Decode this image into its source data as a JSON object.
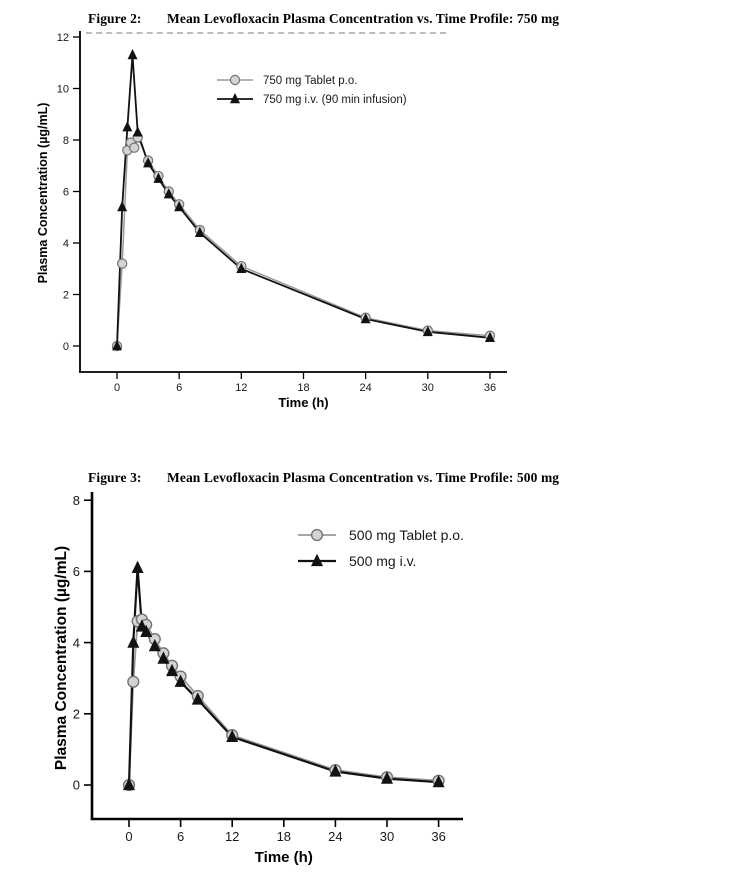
{
  "page": {
    "background": "#ffffff",
    "axis_color": "#000000",
    "tablet_line_color": "#9a9a9a",
    "tablet_marker_fill": "#d3d3d3",
    "tablet_marker_stroke": "#737373",
    "iv_color": "#121212"
  },
  "chart_data": [
    {
      "figure_label": "Figure 2:",
      "title": "Mean Levofloxacin Plasma Concentration vs. Time Profile: 750 mg",
      "type": "line",
      "xlabel": "Time (h)",
      "ylabel": "Plasma Concentration (µg/mL)",
      "xlim": [
        0,
        36
      ],
      "ylim": [
        0,
        12
      ],
      "xticks": [
        0,
        6,
        12,
        18,
        24,
        30,
        36
      ],
      "yticks": [
        0,
        2,
        4,
        6,
        8,
        10,
        12
      ],
      "grid": false,
      "legend_position": "upper-center-inside",
      "series": [
        {
          "name": "750 mg Tablet p.o.",
          "marker": "circle",
          "line_color": "#9a9a9a",
          "marker_fill": "#d3d3d3",
          "marker_stroke": "#737373",
          "x": [
            0,
            0.5,
            1,
            1.33,
            1.67,
            2,
            3,
            4,
            5,
            6,
            8,
            12,
            24,
            30,
            36
          ],
          "y": [
            0,
            3.2,
            7.6,
            7.9,
            7.7,
            8.1,
            7.2,
            6.6,
            6.0,
            5.5,
            4.5,
            3.1,
            1.1,
            0.6,
            0.4
          ]
        },
        {
          "name": "750 mg i.v. (90 min infusion)",
          "marker": "triangle",
          "line_color": "#121212",
          "marker_fill": "#121212",
          "marker_stroke": "#121212",
          "x": [
            0,
            0.5,
            1,
            1.5,
            2,
            3,
            4,
            5,
            6,
            8,
            12,
            24,
            30,
            36
          ],
          "y": [
            0,
            5.4,
            8.5,
            11.3,
            8.3,
            7.1,
            6.5,
            5.9,
            5.4,
            4.4,
            3.0,
            1.05,
            0.55,
            0.32
          ]
        }
      ]
    },
    {
      "figure_label": "Figure 3:",
      "title": "Mean Levofloxacin Plasma Concentration vs. Time Profile: 500 mg",
      "type": "line",
      "xlabel": "Time (h)",
      "ylabel": "Plasma Concentration (µg/mL)",
      "xlim": [
        0,
        36
      ],
      "ylim": [
        0,
        8
      ],
      "xticks": [
        0,
        6,
        12,
        18,
        24,
        30,
        36
      ],
      "yticks": [
        0,
        2,
        4,
        6,
        8
      ],
      "grid": false,
      "legend_position": "upper-right-inside",
      "series": [
        {
          "name": "500 mg Tablet p.o.",
          "marker": "circle",
          "line_color": "#9a9a9a",
          "marker_fill": "#d3d3d3",
          "marker_stroke": "#737373",
          "x": [
            0,
            0.5,
            1,
            1.5,
            2,
            3,
            4,
            5,
            6,
            8,
            12,
            24,
            30,
            36
          ],
          "y": [
            0,
            2.9,
            4.6,
            4.65,
            4.5,
            4.1,
            3.7,
            3.35,
            3.05,
            2.5,
            1.4,
            0.42,
            0.22,
            0.12
          ]
        },
        {
          "name": "500 mg i.v.",
          "marker": "triangle",
          "line_color": "#121212",
          "marker_fill": "#121212",
          "marker_stroke": "#121212",
          "x": [
            0,
            0.5,
            1,
            1.5,
            2,
            3,
            4,
            5,
            6,
            8,
            12,
            24,
            30,
            36
          ],
          "y": [
            0,
            4.0,
            6.1,
            4.45,
            4.3,
            3.9,
            3.55,
            3.2,
            2.9,
            2.4,
            1.35,
            0.38,
            0.18,
            0.08
          ]
        }
      ]
    }
  ]
}
